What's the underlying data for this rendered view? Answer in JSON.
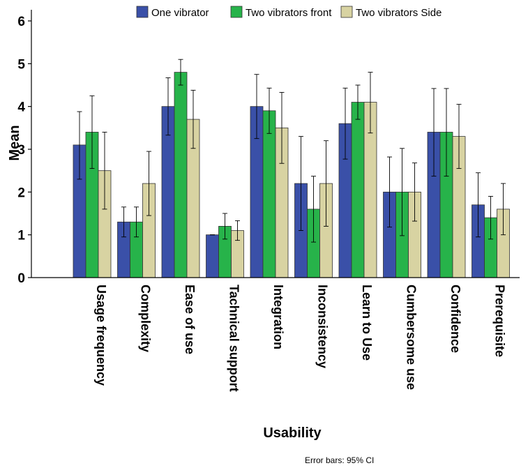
{
  "chart_data": {
    "type": "bar",
    "xlabel": "Usability",
    "ylabel": "Mean",
    "ylim": [
      0,
      6
    ],
    "yticks": [
      0,
      1,
      2,
      3,
      4,
      5,
      6
    ],
    "grid": false,
    "legend_position": "top",
    "error_bar_note": "Error bars: 95% CI",
    "categories": [
      "Usage frequency",
      "Complexity",
      "Ease of use",
      "Tachnical support",
      "Integration",
      "Inconsistency",
      "Learn to Use",
      "Cumbersome use",
      "Confidence",
      "Prerequisite"
    ],
    "series": [
      {
        "name": "One vibrator",
        "color": "#3A50A8",
        "values": [
          3.1,
          1.3,
          4.0,
          1.0,
          4.0,
          2.2,
          3.6,
          2.0,
          3.4,
          1.7
        ],
        "ci_low": [
          2.3,
          0.95,
          3.33,
          1.0,
          3.25,
          1.1,
          2.77,
          1.18,
          2.37,
          0.95
        ],
        "ci_high": [
          3.88,
          1.65,
          4.67,
          1.0,
          4.75,
          3.3,
          4.43,
          2.82,
          4.42,
          2.45
        ]
      },
      {
        "name": "Two vibrators front",
        "color": "#27B34A",
        "values": [
          3.4,
          1.3,
          4.8,
          1.2,
          3.9,
          1.6,
          4.1,
          2.0,
          3.4,
          1.4
        ],
        "ci_low": [
          2.55,
          0.95,
          4.5,
          0.9,
          3.37,
          0.83,
          3.7,
          0.98,
          2.37,
          0.9
        ],
        "ci_high": [
          4.25,
          1.65,
          5.1,
          1.5,
          4.43,
          2.37,
          4.5,
          3.02,
          4.42,
          1.9
        ]
      },
      {
        "name": "Two vibrators Side",
        "color": "#D8D3A2",
        "values": [
          2.5,
          2.2,
          3.7,
          1.1,
          3.5,
          2.2,
          4.1,
          2.0,
          3.3,
          1.6
        ],
        "ci_low": [
          1.6,
          1.45,
          3.02,
          0.87,
          2.67,
          1.2,
          3.38,
          1.32,
          2.55,
          1.0
        ],
        "ci_high": [
          3.4,
          2.95,
          4.38,
          1.33,
          4.33,
          3.2,
          4.8,
          2.68,
          4.05,
          2.2
        ]
      }
    ]
  }
}
